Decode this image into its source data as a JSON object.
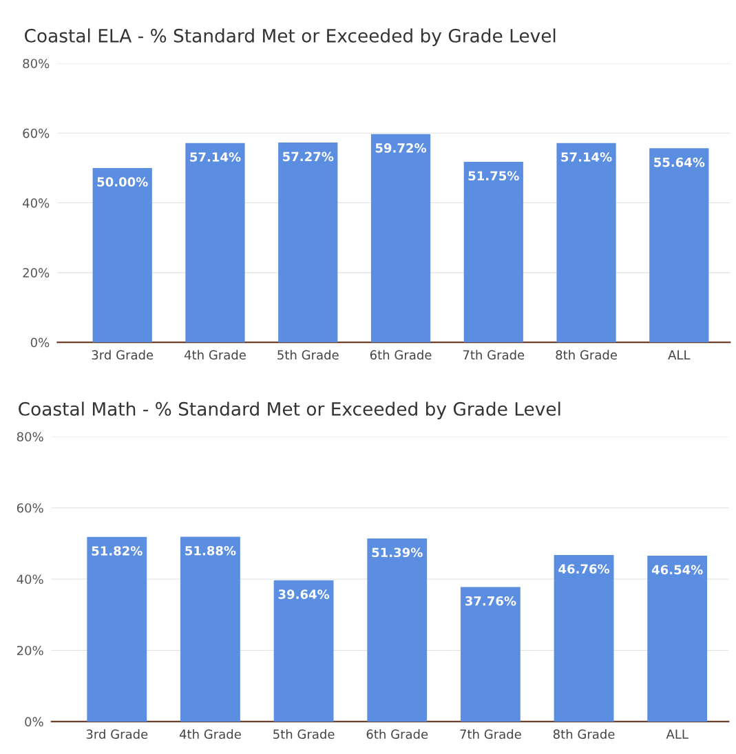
{
  "chart_data": [
    {
      "type": "bar",
      "title": "Coastal ELA - % Standard Met or Exceeded by Grade Level",
      "categories": [
        "3rd Grade",
        "4th Grade",
        "5th Grade",
        "6th Grade",
        "7th Grade",
        "8th Grade",
        "ALL"
      ],
      "values": [
        50.0,
        57.14,
        57.27,
        59.72,
        51.75,
        57.14,
        55.64
      ],
      "value_labels": [
        "50.00%",
        "57.14%",
        "57.27%",
        "59.72%",
        "51.75%",
        "57.14%",
        "55.64%"
      ],
      "color": "#5b8ee0",
      "ylim": [
        0,
        80
      ],
      "yticks": [
        {
          "value": 0,
          "label": "0%"
        },
        {
          "value": 20,
          "label": "20%"
        },
        {
          "value": 40,
          "label": "40%"
        },
        {
          "value": 60,
          "label": "60%"
        },
        {
          "value": 80,
          "label": "80%"
        }
      ],
      "grid": "y",
      "legend": false
    },
    {
      "type": "bar",
      "title": "Coastal Math - % Standard Met or Exceeded by Grade Level",
      "categories": [
        "3rd Grade",
        "4th Grade",
        "5th Grade",
        "6th Grade",
        "7th Grade",
        "8th Grade",
        "ALL"
      ],
      "values": [
        51.82,
        51.88,
        39.64,
        51.39,
        37.76,
        46.76,
        46.54
      ],
      "value_labels": [
        "51.82%",
        "51.88%",
        "39.64%",
        "51.39%",
        "37.76%",
        "46.76%",
        "46.54%"
      ],
      "color": "#5b8ee0",
      "ylim": [
        0,
        80
      ],
      "yticks": [
        {
          "value": 0,
          "label": "0%"
        },
        {
          "value": 20,
          "label": "20%"
        },
        {
          "value": 40,
          "label": "40%"
        },
        {
          "value": 60,
          "label": "60%"
        },
        {
          "value": 80,
          "label": "80%"
        }
      ],
      "grid": "y",
      "legend": false
    }
  ]
}
